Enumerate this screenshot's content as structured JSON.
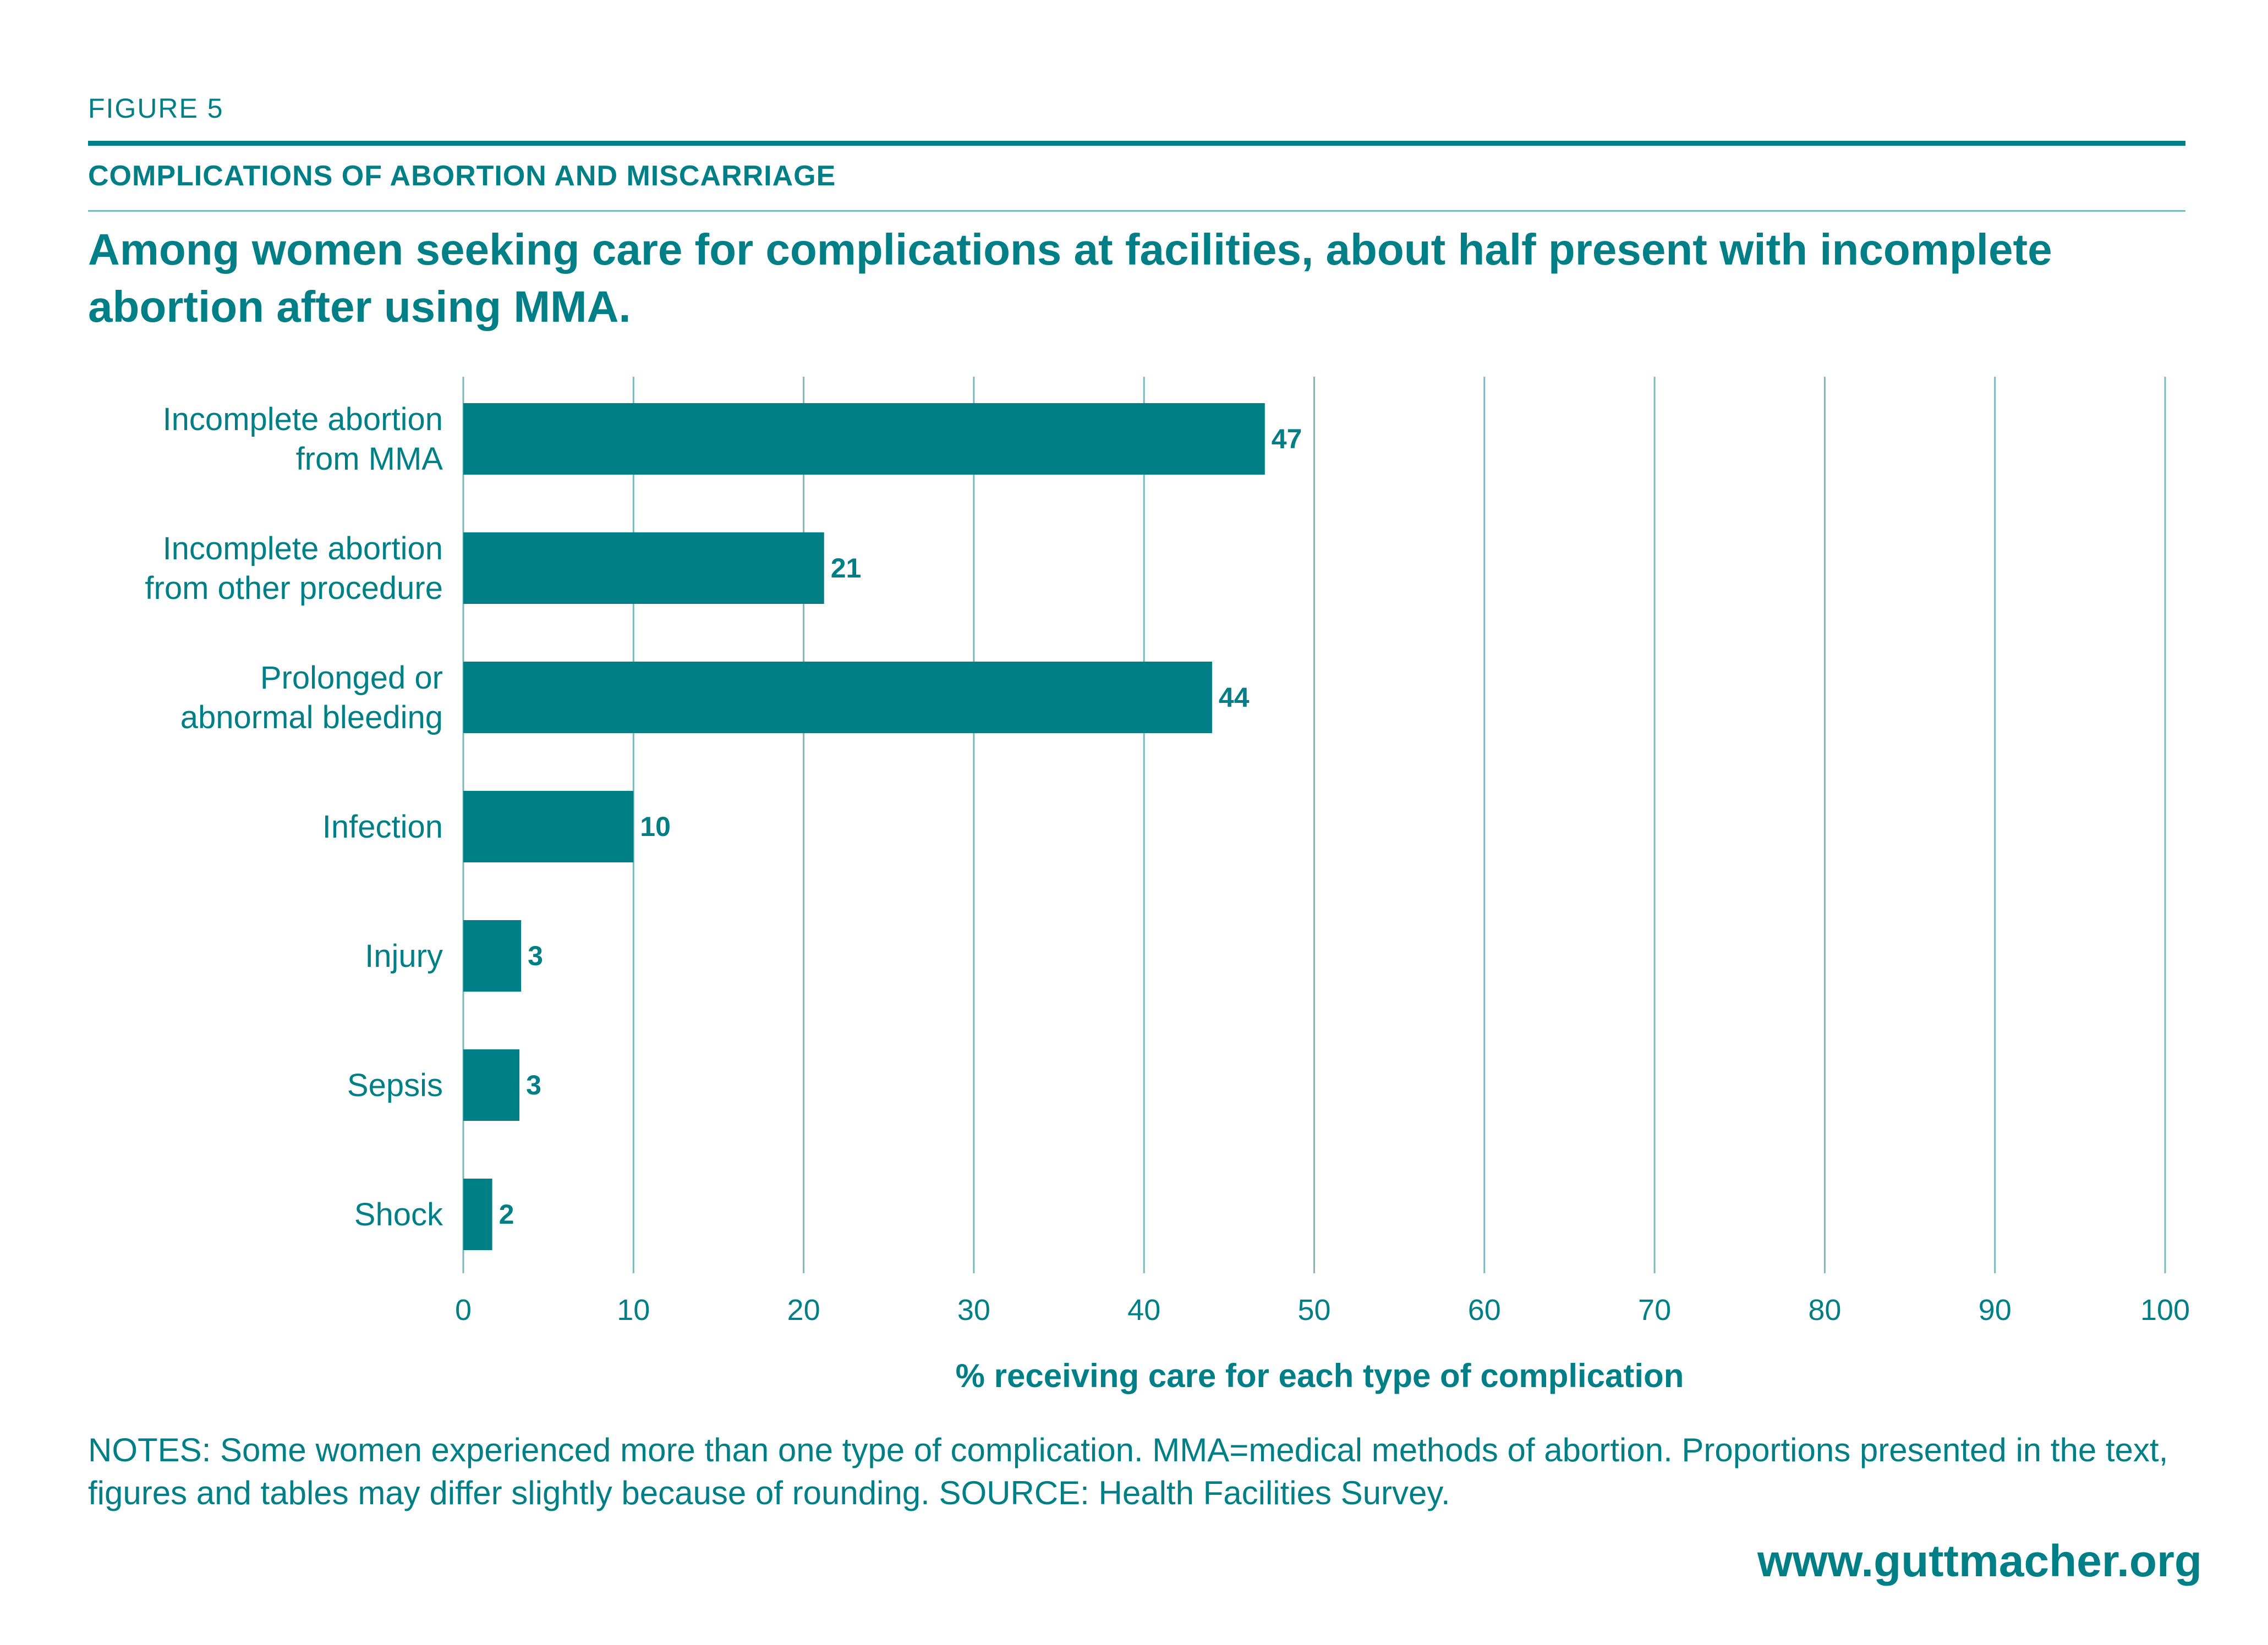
{
  "figure_label": "FIGURE 5",
  "kicker": "COMPLICATIONS OF ABORTION AND MISCARRIAGE",
  "headline": "Among women seeking care for complications at facilities, about half present with incomplete abortion after using MMA.",
  "notes": "NOTES: Some women experienced more than one type of complication. MMA=medical methods of abortion. Proportions presented in the text, figures and tables may differ slightly because of rounding. SOURCE: Health Facilities Survey.",
  "url": "www.guttmacher.org",
  "colors": {
    "bar": "#007f86",
    "grid": "#7cb8bc",
    "text": "#007f86"
  },
  "chart_data": {
    "type": "bar",
    "orientation": "horizontal",
    "categories": [
      [
        "Incomplete abortion",
        "from MMA"
      ],
      [
        "Incomplete abortion",
        "from other procedure"
      ],
      [
        "Prolonged or",
        "abnormal bleeding"
      ],
      [
        "Infection"
      ],
      [
        "Injury"
      ],
      [
        "Sepsis"
      ],
      [
        "Shock"
      ]
    ],
    "values": [
      47.1,
      21.2,
      44.0,
      10.0,
      3.4,
      3.3,
      1.7
    ],
    "data_labels": [
      "47",
      "21",
      "44",
      "10",
      "3",
      "3",
      "2"
    ],
    "xlabel": "% receiving care for each type of complication",
    "xlim": [
      0,
      100
    ],
    "xticks": [
      0,
      10,
      20,
      30,
      40,
      50,
      60,
      70,
      80,
      90,
      100
    ],
    "grid": true
  }
}
